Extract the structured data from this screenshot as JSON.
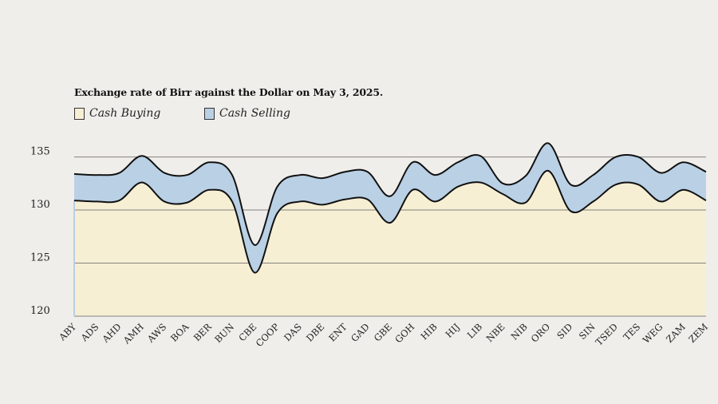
{
  "chart_data": {
    "type": "area",
    "title": "Exchange rate of Birr against the Dollar on May 3, 2025.",
    "categories": [
      "ABY",
      "ADS",
      "AHD",
      "AMH",
      "AWS",
      "BOA",
      "BER",
      "BUN",
      "CBE",
      "COOP",
      "DAS",
      "DBE",
      "ENT",
      "GAD",
      "GBE",
      "GOH",
      "HIB",
      "HIJ",
      "LIB",
      "NBE",
      "NIB",
      "ORO",
      "SID",
      "SIN",
      "TSED",
      "TES",
      "WEG",
      "ZAM",
      "ZEM"
    ],
    "series": [
      {
        "name": "Cash Buying",
        "color": "#f6efd4",
        "values": [
          130.9,
          130.8,
          130.9,
          132.6,
          130.8,
          130.7,
          131.9,
          130.8,
          124.1,
          129.7,
          130.8,
          130.5,
          131.0,
          131.0,
          128.8,
          131.9,
          130.8,
          132.2,
          132.6,
          131.5,
          130.7,
          133.7,
          129.9,
          130.8,
          132.4,
          132.4,
          130.8,
          131.9,
          130.9
        ]
      },
      {
        "name": "Cash Selling",
        "color": "#b9d0e5",
        "values": [
          133.4,
          133.3,
          133.5,
          135.1,
          133.5,
          133.3,
          134.5,
          133.3,
          126.7,
          132.2,
          133.3,
          133.0,
          133.6,
          133.6,
          131.3,
          134.5,
          133.3,
          134.5,
          135.1,
          132.5,
          133.2,
          136.3,
          132.4,
          133.3,
          135.0,
          135.0,
          133.5,
          134.5,
          133.6
        ]
      }
    ],
    "ylim": [
      120,
      137
    ],
    "yticks": [
      120,
      125,
      130,
      135
    ],
    "grid": "horizontal",
    "legend": "top-left"
  }
}
